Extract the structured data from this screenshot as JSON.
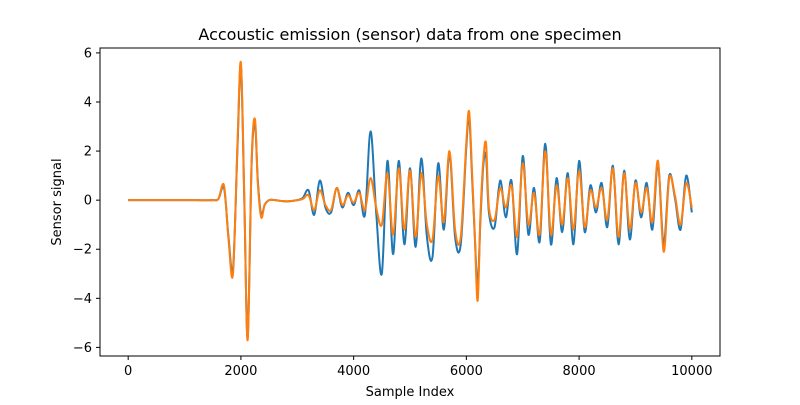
{
  "chart_data": {
    "type": "line",
    "title": "Accoustic emission (sensor) data from one specimen",
    "xlabel": "Sample Index",
    "ylabel": "Sensor signal",
    "xlim": [
      -500,
      10500
    ],
    "ylim": [
      -6.35,
      6.2
    ],
    "grid": false,
    "legend": "none",
    "x_ticks": [
      0,
      2000,
      4000,
      6000,
      8000,
      10000
    ],
    "x_tick_labels": [
      "0",
      "2000",
      "4000",
      "6000",
      "8000",
      "10000"
    ],
    "y_ticks": [
      -6,
      -4,
      -2,
      0,
      2,
      4,
      6
    ],
    "y_tick_labels": [
      "−6",
      "−4",
      "−2",
      "0",
      "2",
      "4",
      "6"
    ],
    "series": [
      {
        "color": "#1f77b4",
        "x": [
          0,
          300,
          600,
          900,
          1200,
          1500,
          1600,
          1700,
          1780,
          1860,
          1940,
          2000,
          2060,
          2120,
          2190,
          2250,
          2300,
          2360,
          2420,
          2500,
          2600,
          2800,
          3000,
          3100,
          3200,
          3300,
          3400,
          3500,
          3600,
          3700,
          3800,
          3900,
          4000,
          4100,
          4200,
          4300,
          4400,
          4500,
          4600,
          4700,
          4800,
          4900,
          5000,
          5100,
          5200,
          5300,
          5400,
          5500,
          5600,
          5700,
          5800,
          5900,
          6000,
          6050,
          6100,
          6150,
          6200,
          6250,
          6300,
          6350,
          6400,
          6500,
          6600,
          6700,
          6800,
          6900,
          7000,
          7100,
          7200,
          7300,
          7400,
          7500,
          7600,
          7700,
          7800,
          7900,
          8000,
          8100,
          8200,
          8300,
          8400,
          8500,
          8600,
          8700,
          8800,
          8900,
          9000,
          9100,
          9200,
          9300,
          9400,
          9500,
          9600,
          9700,
          9800,
          9900,
          10000
        ],
        "y": [
          0,
          0,
          0,
          0,
          0,
          0,
          0.05,
          0.5,
          -1.5,
          -2.8,
          2.2,
          5.5,
          0,
          -5.6,
          1.5,
          3.1,
          0.8,
          -0.6,
          -0.2,
          0,
          0,
          -0.05,
          0,
          0.1,
          0.4,
          -0.6,
          0.8,
          -0.3,
          -0.5,
          0.5,
          -0.3,
          0.3,
          -0.2,
          0.4,
          -0.6,
          2.8,
          -0.5,
          -3.0,
          1.6,
          -2.2,
          1.6,
          -1.8,
          1.3,
          -1.9,
          1.7,
          -1.5,
          -2.3,
          1.5,
          -1.2,
          1.9,
          -1.5,
          -1.8,
          2.2,
          3.4,
          1.0,
          -1.5,
          -3.5,
          -0.8,
          1.4,
          1.8,
          -0.5,
          -1.1,
          0.8,
          -0.7,
          0.8,
          -2.2,
          1.8,
          -1.4,
          0.5,
          -1.7,
          2.3,
          -1.8,
          0.9,
          -1.3,
          1.1,
          -1.8,
          1.6,
          -1.3,
          0.6,
          -0.5,
          0.7,
          -1.1,
          1.4,
          -1.8,
          1.2,
          -1.6,
          0.8,
          -0.7,
          0.7,
          -1.2,
          1.5,
          -1.8,
          1.0,
          0.1,
          -1.2,
          1.0,
          -0.5
        ]
      },
      {
        "color": "#ff7f0e",
        "x": [
          0,
          300,
          600,
          900,
          1200,
          1500,
          1600,
          1700,
          1780,
          1860,
          1940,
          2000,
          2060,
          2120,
          2190,
          2250,
          2300,
          2360,
          2420,
          2500,
          2600,
          2800,
          3000,
          3100,
          3200,
          3300,
          3400,
          3500,
          3600,
          3700,
          3800,
          3900,
          4000,
          4100,
          4200,
          4300,
          4400,
          4500,
          4600,
          4700,
          4800,
          4900,
          5000,
          5100,
          5200,
          5300,
          5400,
          5500,
          5600,
          5700,
          5800,
          5900,
          6000,
          6050,
          6100,
          6150,
          6200,
          6250,
          6300,
          6350,
          6400,
          6500,
          6600,
          6700,
          6800,
          6900,
          7000,
          7100,
          7200,
          7300,
          7400,
          7500,
          7600,
          7700,
          7800,
          7900,
          8000,
          8100,
          8200,
          8300,
          8400,
          8500,
          8600,
          8700,
          8800,
          8900,
          9000,
          9100,
          9200,
          9300,
          9400,
          9500,
          9600,
          9700,
          9800,
          9900,
          10000
        ],
        "y": [
          0,
          0,
          0,
          0,
          0,
          0,
          0.05,
          0.6,
          -1.6,
          -3.0,
          2.4,
          5.6,
          0.2,
          -5.7,
          1.6,
          3.3,
          0.7,
          -0.7,
          -0.2,
          0,
          0,
          -0.05,
          0,
          0.05,
          0.2,
          -0.4,
          0.4,
          -0.2,
          -0.4,
          0.5,
          -0.2,
          0.2,
          -0.1,
          0.3,
          -0.4,
          0.9,
          -0.3,
          -1.0,
          1.1,
          -1.4,
          1.3,
          -1.2,
          1.2,
          -1.5,
          1.1,
          -1.0,
          -1.6,
          1.0,
          -0.9,
          2.0,
          -1.2,
          -1.5,
          2.4,
          3.6,
          1.2,
          -1.4,
          -4.1,
          -0.6,
          1.6,
          2.3,
          -0.3,
          -0.8,
          0.5,
          -0.3,
          0.6,
          -1.5,
          1.5,
          -1.0,
          0.3,
          -1.4,
          2.0,
          -1.4,
          0.6,
          -1.0,
          0.9,
          -1.2,
          1.2,
          -1.1,
          0.4,
          -0.3,
          0.5,
          -0.8,
          1.3,
          -1.5,
          1.1,
          -1.2,
          0.7,
          -0.5,
          0.5,
          -0.9,
          1.6,
          -2.1,
          0.9,
          0.2,
          -1.0,
          0.7,
          -0.3
        ]
      }
    ]
  }
}
